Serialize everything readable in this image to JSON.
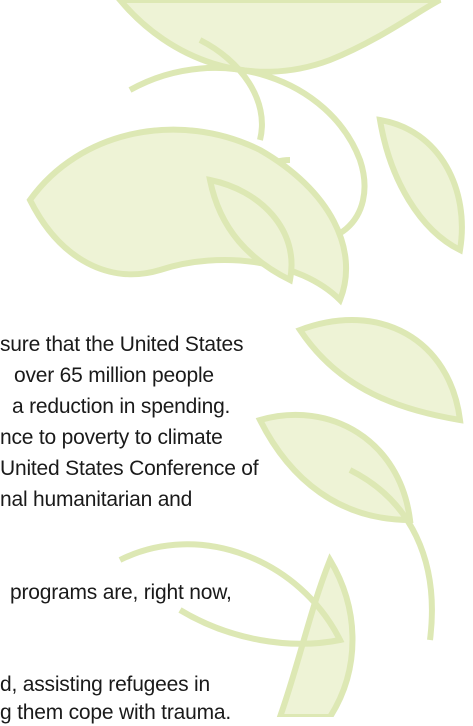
{
  "document": {
    "lines": [
      "sure that the United States",
      "over 65 million people",
      "a reduction in spending.",
      "nce to poverty to climate",
      "United States Conference of",
      "nal humanitarian and",
      "programs are, right now,",
      "d, assisting refugees in",
      "g them cope with trauma."
    ]
  }
}
